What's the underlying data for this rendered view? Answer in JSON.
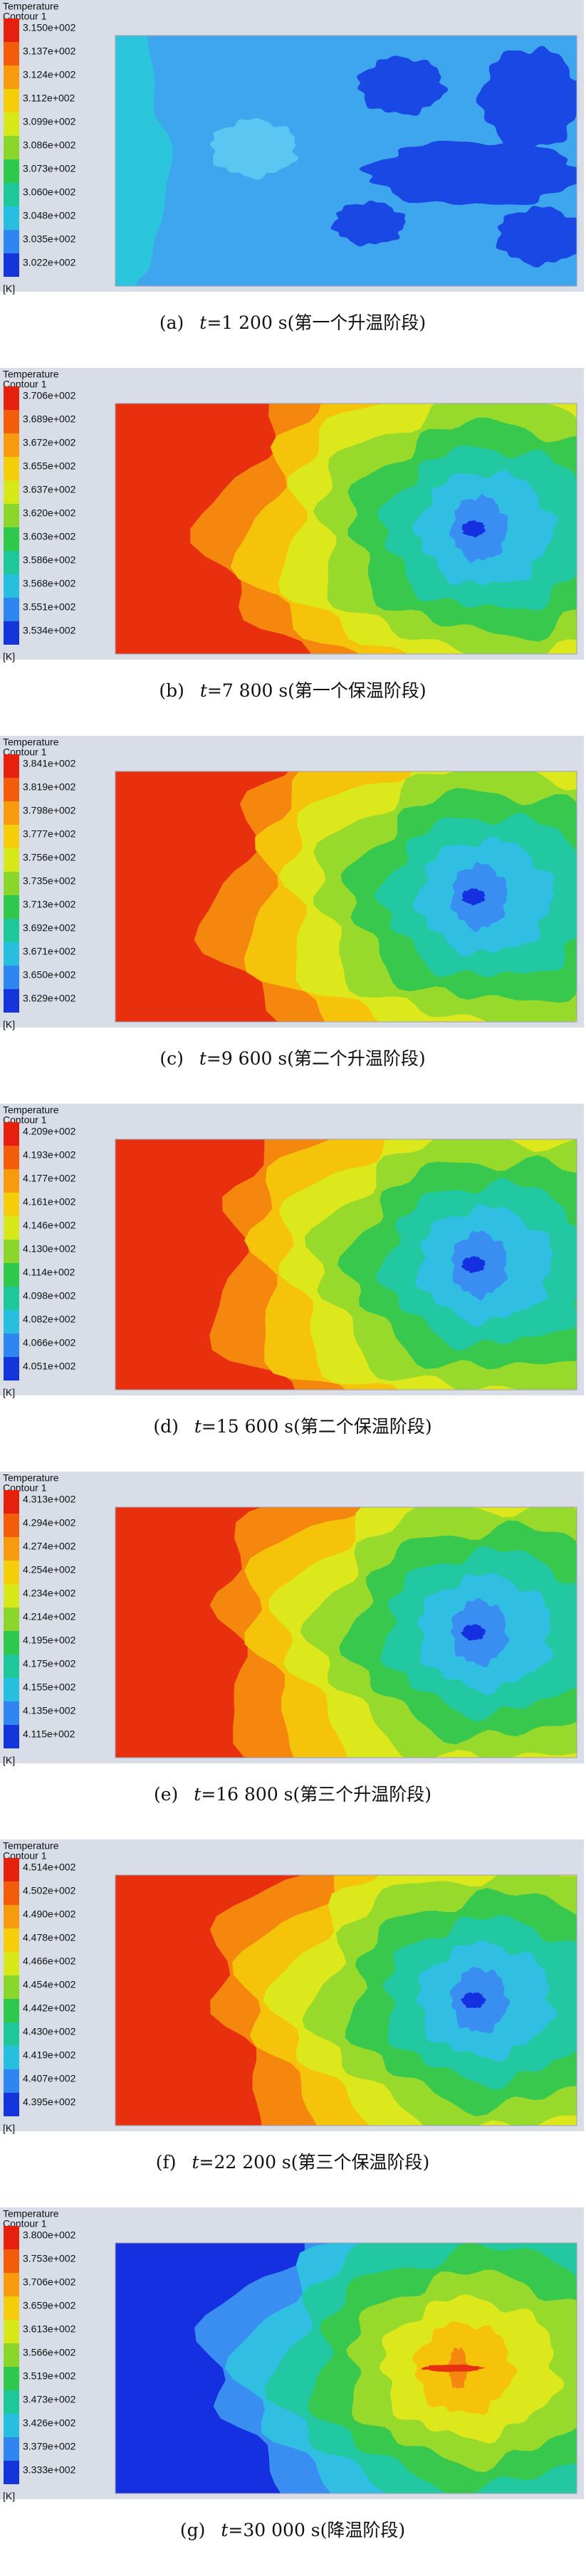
{
  "panels": [
    {
      "legend": {
        "title": "Temperature",
        "subtitle": "Contour 1",
        "labels": [
          "3.150e+002",
          "3.137e+002",
          "3.124e+002",
          "3.112e+002",
          "3.099e+002",
          "3.086e+002",
          "3.073e+002",
          "3.060e+002",
          "3.048e+002",
          "3.035e+002",
          "3.022e+002"
        ],
        "unit": "[K]"
      },
      "caption": {
        "label": "(a)",
        "var": "t",
        "text": "=1 200 s(第一个升温阶段)"
      }
    },
    {
      "legend": {
        "title": "Temperature",
        "subtitle": "Contour 1",
        "labels": [
          "3.706e+002",
          "3.689e+002",
          "3.672e+002",
          "3.655e+002",
          "3.637e+002",
          "3.620e+002",
          "3.603e+002",
          "3.586e+002",
          "3.568e+002",
          "3.551e+002",
          "3.534e+002"
        ],
        "unit": "[K]"
      },
      "caption": {
        "label": "(b)",
        "var": "t",
        "text": "=7 800 s(第一个保温阶段)"
      }
    },
    {
      "legend": {
        "title": "Temperature",
        "subtitle": "Contour 1",
        "labels": [
          "3.841e+002",
          "3.819e+002",
          "3.798e+002",
          "3.777e+002",
          "3.756e+002",
          "3.735e+002",
          "3.713e+002",
          "3.692e+002",
          "3.671e+002",
          "3.650e+002",
          "3.629e+002"
        ],
        "unit": "[K]"
      },
      "caption": {
        "label": "(c)",
        "var": "t",
        "text": "=9 600 s(第二个升温阶段)"
      }
    },
    {
      "legend": {
        "title": "Temperature",
        "subtitle": "Contour 1",
        "labels": [
          "4.209e+002",
          "4.193e+002",
          "4.177e+002",
          "4.161e+002",
          "4.146e+002",
          "4.130e+002",
          "4.114e+002",
          "4.098e+002",
          "4.082e+002",
          "4.066e+002",
          "4.051e+002"
        ],
        "unit": "[K]"
      },
      "caption": {
        "label": "(d)",
        "var": "t",
        "text": "=15 600 s(第二个保温阶段)"
      }
    },
    {
      "legend": {
        "title": "Temperature",
        "subtitle": "Contour 1",
        "labels": [
          "4.313e+002",
          "4.294e+002",
          "4.274e+002",
          "4.254e+002",
          "4.234e+002",
          "4.214e+002",
          "4.195e+002",
          "4.175e+002",
          "4.155e+002",
          "4.135e+002",
          "4.115e+002"
        ],
        "unit": "[K]"
      },
      "caption": {
        "label": "(e)",
        "var": "t",
        "text": "=16 800 s(第三个升温阶段)"
      }
    },
    {
      "legend": {
        "title": "Temperature",
        "subtitle": "Contour 1",
        "labels": [
          "4.514e+002",
          "4.502e+002",
          "4.490e+002",
          "4.478e+002",
          "4.466e+002",
          "4.454e+002",
          "4.442e+002",
          "4.430e+002",
          "4.419e+002",
          "4.407e+002",
          "4.395e+002"
        ],
        "unit": "[K]"
      },
      "caption": {
        "label": "(f)",
        "var": "t",
        "text": "=22 200 s(第三个保温阶段)"
      }
    },
    {
      "legend": {
        "title": "Temperature",
        "subtitle": "Contour 1",
        "labels": [
          "3.800e+002",
          "3.753e+002",
          "3.706e+002",
          "3.659e+002",
          "3.613e+002",
          "3.566e+002",
          "3.519e+002",
          "3.473e+002",
          "3.426e+002",
          "3.379e+002",
          "3.333e+002"
        ],
        "unit": "[K]"
      },
      "caption": {
        "label": "(g)",
        "var": "t",
        "text": "=30 000 s(降温阶段)"
      }
    }
  ]
}
